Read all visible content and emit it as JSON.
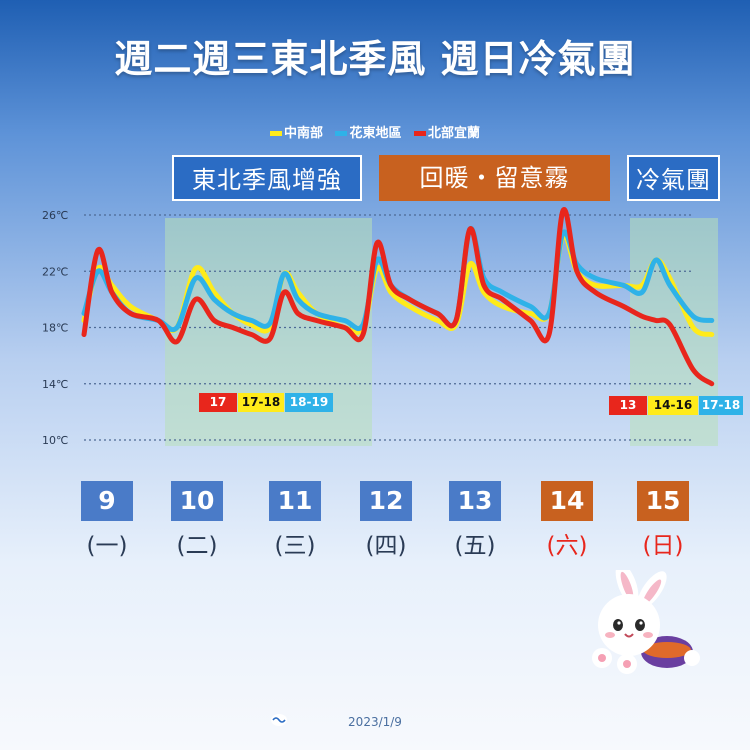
{
  "title": "週二週三東北季風 週日冷氣團",
  "legend": [
    {
      "label": "中南部",
      "color": "#ffeb1a"
    },
    {
      "label": "花東地區",
      "color": "#2fb2e8"
    },
    {
      "label": "北部宜蘭",
      "color": "#e8261c"
    }
  ],
  "banners": [
    {
      "text": "東北季風增強"
    },
    {
      "text": "回暖・留意霧"
    },
    {
      "text": "冷氣團"
    }
  ],
  "days": [
    {
      "num": "9",
      "sub": "(一)",
      "weekend": false
    },
    {
      "num": "10",
      "sub": "(二)",
      "weekend": false
    },
    {
      "num": "11",
      "sub": "(三)",
      "weekend": false
    },
    {
      "num": "12",
      "sub": "(四)",
      "weekend": false
    },
    {
      "num": "13",
      "sub": "(五)",
      "weekend": false
    },
    {
      "num": "14",
      "sub": "(六)",
      "weekend": true
    },
    {
      "num": "15",
      "sub": "(日)",
      "weekend": true
    }
  ],
  "ranges": {
    "tuesday": [
      "17",
      "17-18",
      "18-19"
    ],
    "sunday": [
      "13",
      "14-16",
      "17-18"
    ]
  },
  "footer": "2023/1/9",
  "colors": {
    "weekday_box": "#4a7bc8",
    "weekend_box": "#c8611f",
    "weekend_text": "#e8261c",
    "shade": "#b8e0b8"
  },
  "chart_data": {
    "type": "line",
    "ylabel": "",
    "ylim": [
      10,
      26
    ],
    "yticks": [
      "26℃",
      "22℃",
      "18℃",
      "14℃",
      "10℃"
    ],
    "ytick_values": [
      26,
      22,
      18,
      14,
      10
    ],
    "xlim": [
      0,
      7
    ],
    "x": [
      0.0,
      0.15,
      0.3,
      0.5,
      0.8,
      1.0,
      1.2,
      1.4,
      1.6,
      1.8,
      2.0,
      2.15,
      2.3,
      2.5,
      2.8,
      3.0,
      3.15,
      3.3,
      3.5,
      3.8,
      4.0,
      4.15,
      4.3,
      4.5,
      4.8,
      5.0,
      5.15,
      5.3,
      5.5,
      5.8,
      6.0,
      6.15,
      6.3,
      6.55,
      6.75
    ],
    "series": [
      {
        "name": "中南部",
        "color": "#ffeb1a",
        "values": [
          18.5,
          22.2,
          21.0,
          19.5,
          18.5,
          18.0,
          22.2,
          20.5,
          19.0,
          18.2,
          18.0,
          21.8,
          20.5,
          19.0,
          18.0,
          18.0,
          22.2,
          20.5,
          19.5,
          18.5,
          18.2,
          22.5,
          20.5,
          19.5,
          19.0,
          19.0,
          24.5,
          22.0,
          21.0,
          21.0,
          21.0,
          22.8,
          21.5,
          18.0,
          17.5
        ]
      },
      {
        "name": "花東地區",
        "color": "#2fb2e8",
        "values": [
          19.0,
          22.0,
          20.5,
          19.0,
          18.5,
          18.0,
          21.5,
          20.0,
          19.0,
          18.5,
          18.3,
          21.8,
          20.0,
          19.0,
          18.5,
          18.2,
          22.8,
          21.0,
          20.0,
          19.0,
          18.5,
          25.0,
          21.5,
          20.5,
          19.5,
          19.0,
          24.7,
          22.5,
          21.5,
          21.0,
          20.5,
          22.8,
          21.0,
          18.8,
          18.5
        ]
      },
      {
        "name": "北部宜蘭",
        "color": "#e8261c",
        "values": [
          17.5,
          23.5,
          20.5,
          19.0,
          18.5,
          17.0,
          20.0,
          18.5,
          18.0,
          17.5,
          17.2,
          20.5,
          19.0,
          18.5,
          18.0,
          17.5,
          24.0,
          21.0,
          20.0,
          19.0,
          18.5,
          25.0,
          21.0,
          20.0,
          18.5,
          17.5,
          26.3,
          22.0,
          20.5,
          19.5,
          18.8,
          18.5,
          18.2,
          15.0,
          14.0
        ]
      }
    ],
    "shaded_days": [
      1,
      2,
      6
    ]
  }
}
